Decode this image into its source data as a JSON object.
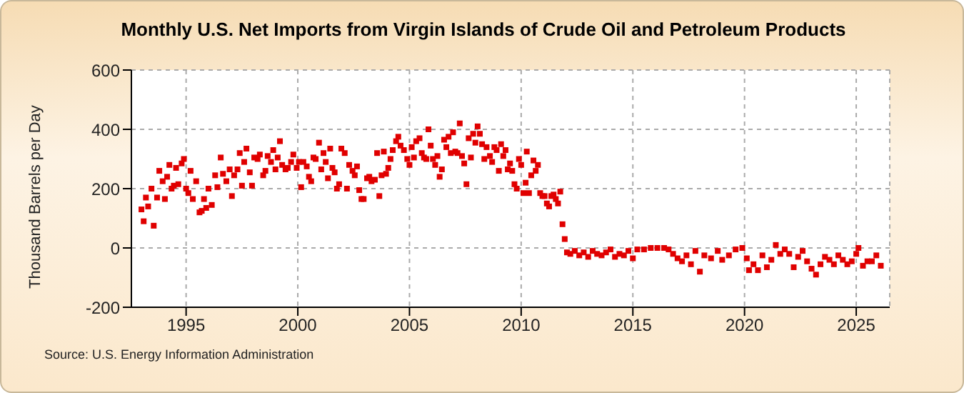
{
  "chart_data": {
    "type": "scatter",
    "title": "Monthly U.S. Net Imports from Virgin Islands of Crude Oil and Petroleum Products",
    "ylabel": "Thousand Barrels per Day",
    "annotations": [
      "Source: U.S. Energy Information Administration"
    ],
    "x": [
      1993.0,
      1993.1,
      1993.2,
      1993.3,
      1993.45,
      1993.55,
      1993.7,
      1993.8,
      1993.95,
      1994.05,
      1994.15,
      1994.25,
      1994.35,
      1994.45,
      1994.55,
      1994.65,
      1994.8,
      1994.9,
      1995.0,
      1995.1,
      1995.2,
      1995.3,
      1995.45,
      1995.6,
      1995.7,
      1995.8,
      1995.9,
      1996.0,
      1996.15,
      1996.3,
      1996.4,
      1996.55,
      1996.65,
      1996.8,
      1996.95,
      1997.05,
      1997.15,
      1997.3,
      1997.4,
      1997.5,
      1997.6,
      1997.7,
      1997.85,
      1997.95,
      1998.05,
      1998.2,
      1998.3,
      1998.45,
      1998.55,
      1998.65,
      1998.8,
      1998.9,
      1999.0,
      1999.1,
      1999.2,
      1999.3,
      1999.45,
      1999.55,
      1999.7,
      1999.8,
      1999.95,
      2000.05,
      2000.15,
      2000.25,
      2000.4,
      2000.5,
      2000.6,
      2000.7,
      2000.8,
      2000.95,
      2001.05,
      2001.15,
      2001.25,
      2001.35,
      2001.45,
      2001.55,
      2001.65,
      2001.75,
      2001.85,
      2001.95,
      2002.1,
      2002.2,
      2002.3,
      2002.45,
      2002.55,
      2002.65,
      2002.75,
      2002.85,
      2002.95,
      2003.1,
      2003.2,
      2003.3,
      2003.45,
      2003.55,
      2003.65,
      2003.75,
      2003.85,
      2003.95,
      2004.05,
      2004.15,
      2004.25,
      2004.4,
      2004.5,
      2004.6,
      2004.75,
      2004.9,
      2005.0,
      2005.1,
      2005.2,
      2005.3,
      2005.45,
      2005.55,
      2005.65,
      2005.75,
      2005.85,
      2005.95,
      2006.05,
      2006.15,
      2006.25,
      2006.35,
      2006.45,
      2006.55,
      2006.65,
      2006.75,
      2006.85,
      2006.95,
      2007.05,
      2007.15,
      2007.25,
      2007.35,
      2007.45,
      2007.55,
      2007.65,
      2007.75,
      2007.85,
      2007.95,
      2008.05,
      2008.15,
      2008.25,
      2008.35,
      2008.45,
      2008.6,
      2008.7,
      2008.8,
      2008.9,
      2009.0,
      2009.1,
      2009.2,
      2009.3,
      2009.4,
      2009.5,
      2009.6,
      2009.7,
      2009.8,
      2009.9,
      2010.0,
      2010.1,
      2010.2,
      2010.25,
      2010.35,
      2010.45,
      2010.55,
      2010.65,
      2010.75,
      2010.85,
      2010.95,
      2011.05,
      2011.15,
      2011.25,
      2011.35,
      2011.45,
      2011.55,
      2011.65,
      2011.75,
      2011.85,
      2011.95,
      2012.05,
      2012.2,
      2012.4,
      2012.6,
      2012.8,
      2013.0,
      2013.2,
      2013.4,
      2013.6,
      2013.8,
      2014.0,
      2014.2,
      2014.4,
      2014.6,
      2014.8,
      2015.0,
      2015.2,
      2015.5,
      2015.8,
      2016.1,
      2016.4,
      2016.6,
      2016.8,
      2017.0,
      2017.2,
      2017.4,
      2017.6,
      2017.8,
      2018.0,
      2018.2,
      2018.5,
      2018.8,
      2019.0,
      2019.3,
      2019.6,
      2019.9,
      2020.1,
      2020.2,
      2020.4,
      2020.6,
      2020.8,
      2021.0,
      2021.2,
      2021.4,
      2021.6,
      2021.8,
      2022.0,
      2022.2,
      2022.4,
      2022.6,
      2022.8,
      2023.0,
      2023.2,
      2023.4,
      2023.6,
      2023.8,
      2024.0,
      2024.2,
      2024.4,
      2024.6,
      2024.8,
      2025.0,
      2025.1,
      2025.3,
      2025.5,
      2025.7,
      2025.9,
      2026.1
    ],
    "values": [
      130,
      90,
      170,
      140,
      200,
      75,
      170,
      260,
      225,
      165,
      240,
      280,
      200,
      210,
      270,
      215,
      285,
      300,
      200,
      185,
      260,
      165,
      225,
      120,
      125,
      165,
      135,
      200,
      145,
      245,
      205,
      305,
      250,
      225,
      265,
      175,
      245,
      265,
      320,
      210,
      290,
      335,
      255,
      210,
      305,
      300,
      315,
      245,
      260,
      310,
      290,
      330,
      265,
      305,
      360,
      280,
      265,
      270,
      290,
      315,
      270,
      290,
      205,
      290,
      275,
      240,
      225,
      305,
      300,
      355,
      265,
      320,
      290,
      235,
      335,
      270,
      255,
      200,
      215,
      335,
      320,
      200,
      280,
      260,
      245,
      275,
      195,
      165,
      165,
      235,
      240,
      225,
      230,
      320,
      175,
      245,
      325,
      250,
      270,
      300,
      330,
      360,
      375,
      345,
      330,
      300,
      280,
      340,
      305,
      360,
      370,
      320,
      305,
      300,
      400,
      345,
      300,
      280,
      310,
      240,
      265,
      365,
      340,
      375,
      320,
      390,
      325,
      320,
      420,
      310,
      285,
      215,
      370,
      305,
      385,
      355,
      410,
      385,
      350,
      300,
      340,
      310,
      290,
      340,
      330,
      260,
      350,
      310,
      330,
      265,
      285,
      260,
      215,
      200,
      300,
      280,
      185,
      220,
      325,
      185,
      245,
      295,
      260,
      280,
      185,
      175,
      175,
      150,
      140,
      175,
      180,
      165,
      150,
      190,
      80,
      30,
      -15,
      -20,
      -10,
      -25,
      -15,
      -30,
      -10,
      -20,
      -25,
      -15,
      -5,
      -30,
      -20,
      -25,
      -10,
      -35,
      -5,
      -5,
      0,
      0,
      0,
      -5,
      -20,
      -35,
      -45,
      -25,
      -55,
      -10,
      -80,
      -25,
      -35,
      -10,
      -40,
      -25,
      -5,
      0,
      -35,
      -75,
      -55,
      -75,
      -25,
      -65,
      -40,
      10,
      -20,
      -5,
      -20,
      -65,
      -30,
      -10,
      -45,
      -70,
      -90,
      -55,
      -30,
      -40,
      -55,
      -25,
      -40,
      -55,
      -45,
      -20,
      0,
      -60,
      -45,
      -45,
      -25,
      -60
    ],
    "color": "#e00000",
    "marker": "square",
    "xlim": [
      1992.55,
      2026.5
    ],
    "xticks": [
      1995,
      2000,
      2005,
      2010,
      2015,
      2020,
      2025
    ],
    "ylim": [
      -200,
      600
    ],
    "yticks": [
      -200,
      0,
      200,
      400,
      600
    ],
    "grid": true
  }
}
